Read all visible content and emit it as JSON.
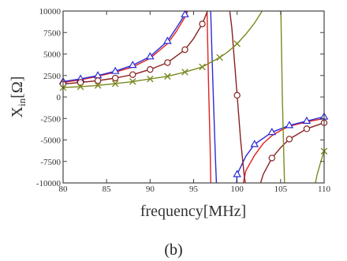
{
  "chart_data": {
    "type": "line",
    "xlabel": "frequency[MHz]",
    "ylabel_main": "X",
    "ylabel_sub": "in",
    "ylabel_unit": "[Ω]",
    "caption": "(b)",
    "xlim": [
      80,
      110
    ],
    "ylim": [
      -10000,
      10000
    ],
    "xticks": [
      80,
      85,
      90,
      95,
      100,
      105,
      110
    ],
    "yticks": [
      10000,
      7500,
      5000,
      2500,
      0,
      -2500,
      -5000,
      -7500,
      -10000
    ],
    "grid": false,
    "legend": "none",
    "series": [
      {
        "color": "#e02020",
        "marker": "none",
        "branches": [
          {
            "x": [
              80,
              82,
              84,
              86,
              88,
              90,
              92,
              93,
              94,
              95,
              96
            ],
            "y": [
              1700,
              2000,
              2400,
              2900,
              3500,
              4500,
              6200,
              7600,
              9300,
              11500,
              15000
            ]
          },
          {
            "x": [
              96.3,
              96.5,
              96.7,
              96.9,
              97.0
            ],
            "y": [
              20000,
              12000,
              2000,
              -6000,
              -12000
            ]
          },
          {
            "x": [
              100.5,
              101,
              102,
              103,
              104,
              105,
              106,
              108,
              110
            ],
            "y": [
              -11000,
              -8600,
              -6800,
              -5400,
              -4500,
              -3900,
              -3400,
              -2900,
              -2500
            ]
          }
        ]
      },
      {
        "color": "#2b2bd6",
        "marker": "triangle",
        "marker_x": [
          80,
          82,
          84,
          86,
          88,
          90,
          92,
          94,
          100,
          102,
          104,
          106,
          108,
          110
        ],
        "branches": [
          {
            "x": [
              80,
              82,
              84,
              86,
              88,
              90,
              92,
              93,
              94,
              95,
              96
            ],
            "y": [
              1800,
              2100,
              2500,
              3000,
              3700,
              4700,
              6500,
              8000,
              9600,
              12000,
              16000
            ]
          },
          {
            "x": [
              96.6,
              96.9,
              97.2,
              97.5,
              97.7
            ],
            "y": [
              20000,
              12000,
              2000,
              -7000,
              -12000
            ]
          },
          {
            "x": [
              99.8,
              100,
              101,
              102,
              104,
              106,
              108,
              110
            ],
            "y": [
              -12000,
              -9000,
              -6900,
              -5500,
              -4100,
              -3300,
              -2800,
              -2300
            ]
          }
        ]
      },
      {
        "color": "#8a2020",
        "marker": "circle",
        "marker_x": [
          80,
          82,
          84,
          86,
          88,
          90,
          92,
          94,
          96,
          100,
          104,
          106,
          108,
          110
        ],
        "branches": [
          {
            "x": [
              80,
              82,
              84,
              86,
              88,
              90,
              92,
              94,
              95,
              96,
              97
            ],
            "y": [
              1500,
              1700,
              1900,
              2200,
              2600,
              3200,
              4000,
              5500,
              6800,
              8500,
              11000
            ]
          },
          {
            "x": [
              97.7,
              98.2,
              98.8,
              99.4,
              100,
              100.4,
              100.8,
              101.2
            ],
            "y": [
              20000,
              17000,
              13000,
              8000,
              200,
              -5000,
              -9000,
              -12000
            ]
          },
          {
            "x": [
              102.4,
              103,
              104,
              105,
              106,
              108,
              110
            ],
            "y": [
              -11000,
              -9000,
              -7100,
              -5900,
              -4900,
              -3700,
              -3000
            ]
          }
        ]
      },
      {
        "color": "#7a8a20",
        "marker": "cross",
        "marker_x": [
          80,
          82,
          84,
          86,
          88,
          90,
          92,
          94,
          96,
          98,
          100,
          110
        ],
        "branches": [
          {
            "x": [
              80,
              82,
              84,
              86,
              88,
              90,
              92,
              94,
              96,
              98,
              99,
              100,
              101,
              102,
              103,
              104,
              104.6
            ],
            "y": [
              1100,
              1200,
              1350,
              1550,
              1800,
              2100,
              2400,
              2900,
              3500,
              4600,
              5300,
              6200,
              7300,
              8600,
              10200,
              12500,
              15000
            ]
          },
          {
            "x": [
              105,
              105.2,
              105.5
            ],
            "y": [
              12000,
              0,
              -12000
            ]
          },
          {
            "x": [
              108.8,
              109.2,
              109.6,
              110
            ],
            "y": [
              -11000,
              -9000,
              -7600,
              -6300
            ]
          }
        ]
      }
    ]
  }
}
